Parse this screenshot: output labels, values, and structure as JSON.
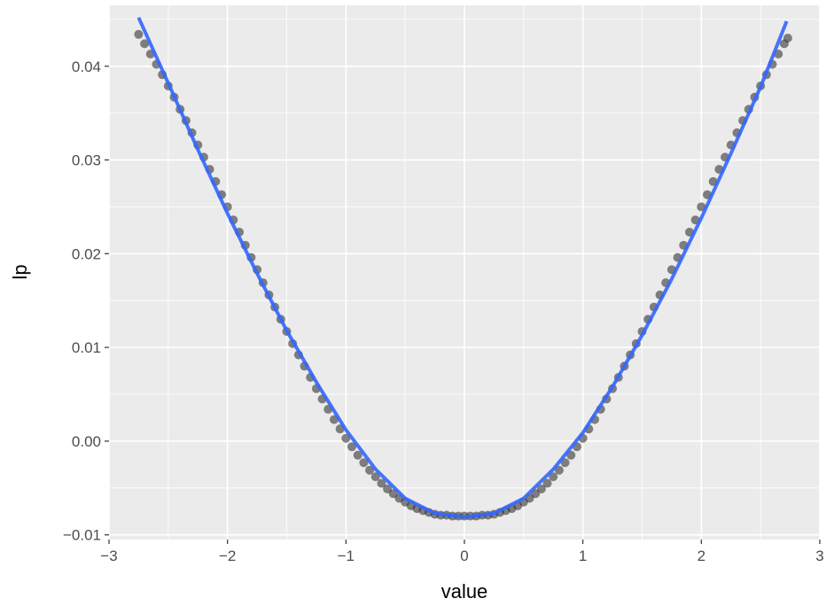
{
  "chart_data": {
    "type": "scatter",
    "title": "",
    "xlabel": "value",
    "ylabel": "lp",
    "xlim": [
      -3,
      3
    ],
    "ylim": [
      -0.0105,
      0.0465
    ],
    "x_ticks": [
      -3,
      -2,
      -1,
      0,
      1,
      2,
      3
    ],
    "x_tick_labels": [
      "−3",
      "−2",
      "−1",
      "0",
      "1",
      "2",
      "3"
    ],
    "y_ticks": [
      -0.01,
      0.0,
      0.01,
      0.02,
      0.03,
      0.04
    ],
    "y_tick_labels": [
      "−0.01",
      "0.00",
      "0.01",
      "0.02",
      "0.03",
      "0.04"
    ],
    "grid": true,
    "background": "#ebebeb",
    "series": [
      {
        "kind": "points",
        "color": "#333333",
        "opacity": 0.6,
        "x": [
          -2.75,
          -2.7,
          -2.65,
          -2.6,
          -2.55,
          -2.5,
          -2.45,
          -2.4,
          -2.35,
          -2.3,
          -2.25,
          -2.2,
          -2.15,
          -2.1,
          -2.05,
          -2.0,
          -1.95,
          -1.9,
          -1.85,
          -1.8,
          -1.75,
          -1.7,
          -1.65,
          -1.6,
          -1.55,
          -1.5,
          -1.45,
          -1.4,
          -1.35,
          -1.3,
          -1.25,
          -1.2,
          -1.15,
          -1.1,
          -1.05,
          -1.0,
          -0.95,
          -0.9,
          -0.85,
          -0.8,
          -0.75,
          -0.7,
          -0.65,
          -0.6,
          -0.55,
          -0.5,
          -0.45,
          -0.4,
          -0.35,
          -0.3,
          -0.25,
          -0.2,
          -0.15,
          -0.1,
          -0.05,
          0.0,
          0.05,
          0.1,
          0.15,
          0.2,
          0.25,
          0.3,
          0.35,
          0.4,
          0.45,
          0.5,
          0.55,
          0.6,
          0.65,
          0.7,
          0.75,
          0.8,
          0.85,
          0.9,
          0.95,
          1.0,
          1.05,
          1.1,
          1.15,
          1.2,
          1.25,
          1.3,
          1.35,
          1.4,
          1.45,
          1.5,
          1.55,
          1.6,
          1.65,
          1.7,
          1.75,
          1.8,
          1.85,
          1.9,
          1.95,
          2.0,
          2.05,
          2.1,
          2.15,
          2.2,
          2.25,
          2.3,
          2.35,
          2.4,
          2.45,
          2.5,
          2.55,
          2.6,
          2.65,
          2.7,
          2.73
        ],
        "y": [
          0.0434,
          0.0424,
          0.0413,
          0.0402,
          0.0391,
          0.0379,
          0.0367,
          0.0354,
          0.0342,
          0.0329,
          0.0316,
          0.0303,
          0.029,
          0.0277,
          0.0263,
          0.025,
          0.0236,
          0.0223,
          0.0209,
          0.0196,
          0.0183,
          0.0169,
          0.0156,
          0.0143,
          0.013,
          0.0117,
          0.0104,
          0.0092,
          0.008,
          0.0068,
          0.0056,
          0.0045,
          0.0034,
          0.0023,
          0.0013,
          0.0003,
          -0.0006,
          -0.0015,
          -0.0023,
          -0.0031,
          -0.0038,
          -0.0045,
          -0.0051,
          -0.0056,
          -0.0061,
          -0.0065,
          -0.0069,
          -0.0072,
          -0.0074,
          -0.0076,
          -0.0078,
          -0.0079,
          -0.0079,
          -0.008,
          -0.008,
          -0.008,
          -0.008,
          -0.008,
          -0.0079,
          -0.0079,
          -0.0078,
          -0.0076,
          -0.0074,
          -0.0072,
          -0.0069,
          -0.0065,
          -0.0061,
          -0.0056,
          -0.0051,
          -0.0045,
          -0.0038,
          -0.0031,
          -0.0023,
          -0.0015,
          -0.0006,
          0.0003,
          0.0013,
          0.0023,
          0.0034,
          0.0045,
          0.0056,
          0.0068,
          0.008,
          0.0092,
          0.0104,
          0.0117,
          0.013,
          0.0143,
          0.0156,
          0.0169,
          0.0183,
          0.0196,
          0.0209,
          0.0223,
          0.0236,
          0.025,
          0.0263,
          0.0277,
          0.029,
          0.0303,
          0.0316,
          0.0329,
          0.0342,
          0.0354,
          0.0367,
          0.0379,
          0.0391,
          0.0402,
          0.0413,
          0.0424,
          0.043
        ]
      },
      {
        "kind": "line",
        "color": "#3366ff",
        "x": [
          -2.75,
          -2.5,
          -2.25,
          -2.0,
          -1.75,
          -1.5,
          -1.25,
          -1.0,
          -0.75,
          -0.5,
          -0.25,
          0.0,
          0.25,
          0.5,
          0.75,
          1.0,
          1.25,
          1.5,
          1.75,
          2.0,
          2.25,
          2.5,
          2.72
        ],
        "y": [
          0.0452,
          0.0382,
          0.0311,
          0.0243,
          0.0179,
          0.0118,
          0.0063,
          0.0012,
          -0.003,
          -0.0061,
          -0.0077,
          -0.0081,
          -0.0077,
          -0.0061,
          -0.003,
          0.0009,
          0.0058,
          0.0113,
          0.0173,
          0.0238,
          0.0307,
          0.0378,
          0.0448
        ]
      }
    ]
  }
}
